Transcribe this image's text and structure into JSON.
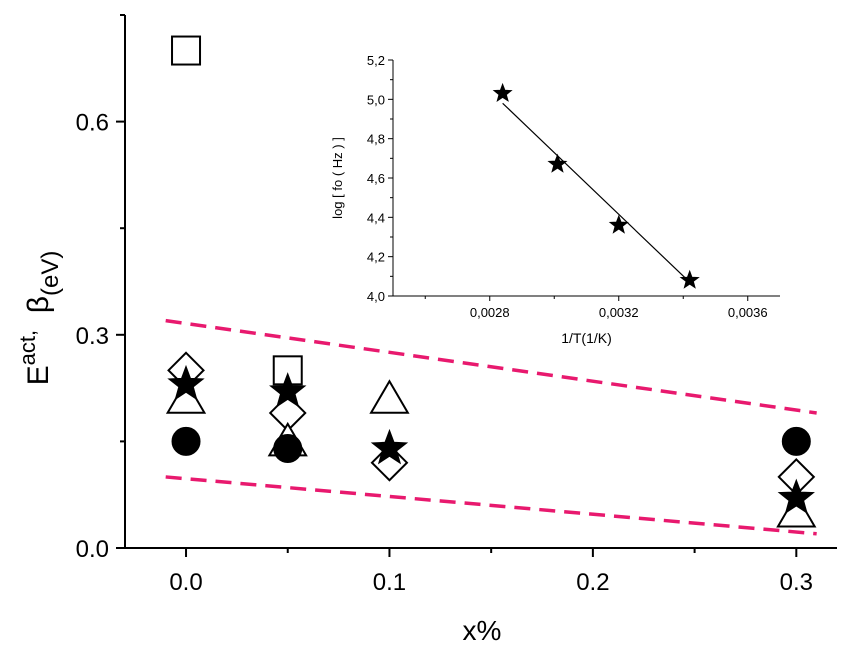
{
  "chart_data": [
    {
      "type": "scatter",
      "xlabel": "x%",
      "ylabel": {
        "base": "E",
        "sup": "act,",
        "middle": "  β",
        "sub": "(eV)"
      },
      "xlim": [
        -0.03,
        0.32
      ],
      "ylim": [
        0.0,
        0.75
      ],
      "xticks": [
        "0.0",
        "0.1",
        "0.2",
        "0.3"
      ],
      "yticks": [
        "0.0",
        "0.3",
        "0.6"
      ],
      "series": [
        {
          "marker": "square-open",
          "points": [
            [
              0.0,
              0.7
            ],
            [
              0.05,
              0.25
            ]
          ]
        },
        {
          "marker": "diamond-open",
          "points": [
            [
              0.0,
              0.25
            ],
            [
              0.05,
              0.19
            ],
            [
              0.1,
              0.12
            ],
            [
              0.3,
              0.1
            ]
          ]
        },
        {
          "marker": "triangle-open",
          "points": [
            [
              0.0,
              0.21
            ],
            [
              0.05,
              0.15
            ],
            [
              0.1,
              0.21
            ],
            [
              0.3,
              0.05
            ]
          ]
        },
        {
          "marker": "star-filled",
          "points": [
            [
              0.0,
              0.23
            ],
            [
              0.05,
              0.22
            ],
            [
              0.1,
              0.14
            ],
            [
              0.3,
              0.07
            ]
          ]
        },
        {
          "marker": "circle-filled",
          "points": [
            [
              0.0,
              0.15
            ],
            [
              0.05,
              0.14
            ],
            [
              0.3,
              0.15
            ]
          ]
        }
      ],
      "bounds": [
        {
          "style": "dashed",
          "color": "#e8196e",
          "points": [
            [
              -0.01,
              0.32
            ],
            [
              0.31,
              0.19
            ]
          ]
        },
        {
          "style": "dashed",
          "color": "#e8196e",
          "points": [
            [
              -0.01,
              0.1
            ],
            [
              0.31,
              0.02
            ]
          ]
        }
      ],
      "grid": false,
      "legend": "none"
    },
    {
      "type": "scatter",
      "inset": true,
      "xlabel": "1/T(1/K)",
      "ylabel": "log [ fo ( Hz ) ]",
      "xlim": [
        0.0025,
        0.0037
      ],
      "ylim": [
        4.0,
        5.2
      ],
      "xticks": [
        {
          "value": 0.0028,
          "label": "0,0028"
        },
        {
          "value": 0.0032,
          "label": "0,0032"
        },
        {
          "value": 0.0036,
          "label": "0,0036"
        }
      ],
      "yticks": [
        {
          "value": 4.0,
          "label": "4,0"
        },
        {
          "value": 4.2,
          "label": "4,2"
        },
        {
          "value": 4.4,
          "label": "4,4"
        },
        {
          "value": 4.6,
          "label": "4,6"
        },
        {
          "value": 4.8,
          "label": "4,8"
        },
        {
          "value": 5.0,
          "label": "5,0"
        },
        {
          "value": 5.2,
          "label": "5,2"
        }
      ],
      "points": [
        [
          0.00284,
          5.03
        ],
        [
          0.00301,
          4.67
        ],
        [
          0.0032,
          4.36
        ],
        [
          0.00342,
          4.08
        ]
      ],
      "fit_line": [
        [
          0.00284,
          4.98
        ],
        [
          0.00342,
          4.07
        ]
      ],
      "marker": "star-filled",
      "grid": false
    }
  ]
}
